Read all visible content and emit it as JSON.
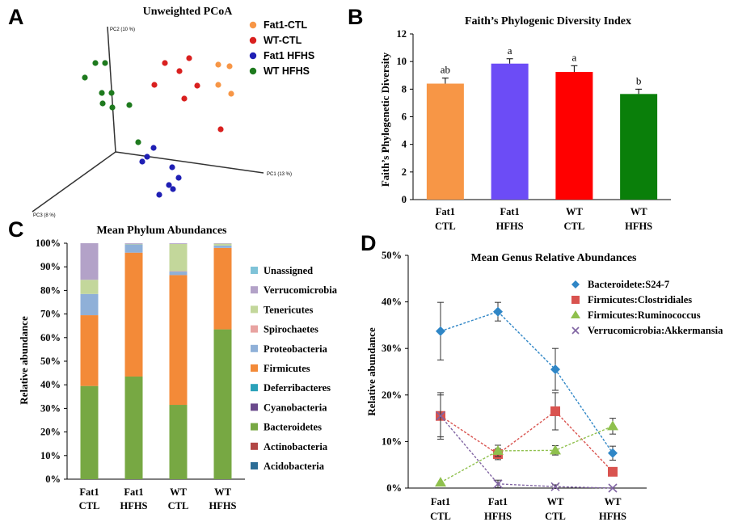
{
  "panels": {
    "A": "A",
    "B": "B",
    "C": "C",
    "D": "D"
  },
  "chart_data": [
    {
      "id": "A",
      "type": "scatter",
      "title": "Unweighted PCoA",
      "axis_labels": {
        "pc1": "PC1 (13 %)",
        "pc2": "PC2 (10 %)",
        "pc3": "PC3 (8 %)"
      },
      "legend_placement": "top-right",
      "series": [
        {
          "name": "Fat1-CTL",
          "color": "#f79646"
        },
        {
          "name": "WT-CTL",
          "color": "#d9201f"
        },
        {
          "name": "Fat1 HFHS",
          "color": "#1f1fb4"
        },
        {
          "name": "WT HFHS",
          "color": "#1e7a1e"
        }
      ]
    },
    {
      "id": "B",
      "type": "bar",
      "title": "Faith’s Phylogenic Diversity Index",
      "ylabel": "Faith’s Phylogenetic Diversity",
      "ylim": [
        0,
        12
      ],
      "yticks": [
        "0",
        "2",
        "4",
        "6",
        "8",
        "10",
        "12"
      ],
      "categories": [
        [
          "Fat1",
          "CTL"
        ],
        [
          "Fat1",
          "HFHS"
        ],
        [
          "WT",
          "CTL"
        ],
        [
          "WT",
          "HFHS"
        ]
      ],
      "values": [
        8.4,
        9.85,
        9.25,
        7.65
      ],
      "errors": [
        0.4,
        0.35,
        0.45,
        0.35
      ],
      "significance": [
        "ab",
        "a",
        "a",
        "b"
      ],
      "colors": [
        "#f79646",
        "#6c4cf6",
        "#ff0000",
        "#0a7f0a"
      ]
    },
    {
      "id": "C",
      "type": "bar",
      "stacked": true,
      "title": "Mean Phylum Abundances",
      "ylabel": "Relative abundance",
      "ylim": [
        0,
        100
      ],
      "yticks": [
        "0%",
        "10%",
        "20%",
        "30%",
        "40%",
        "50%",
        "60%",
        "70%",
        "80%",
        "90%",
        "100%"
      ],
      "categories": [
        [
          "Fat1",
          "CTL"
        ],
        [
          "Fat1",
          "HFHS"
        ],
        [
          "WT",
          "CTL"
        ],
        [
          "WT",
          "HFHS"
        ]
      ],
      "legend_placement": "right",
      "series": [
        {
          "name": "Acidobacteria",
          "color": "#2c6d96",
          "values": [
            0,
            0,
            0,
            0
          ]
        },
        {
          "name": "Actinobacteria",
          "color": "#b24745",
          "values": [
            0,
            0,
            0,
            0
          ]
        },
        {
          "name": "Bacteroidetes",
          "color": "#77a843",
          "values": [
            39.5,
            43.5,
            31.5,
            63.5
          ]
        },
        {
          "name": "Cyanobacteria",
          "color": "#6a4a8c",
          "values": [
            0,
            0,
            0,
            0
          ]
        },
        {
          "name": "Deferribacteres",
          "color": "#2aa1b9",
          "values": [
            0,
            0,
            0,
            0
          ]
        },
        {
          "name": "Firmicutes",
          "color": "#f38a38",
          "values": [
            30.0,
            52.5,
            55.0,
            34.5
          ]
        },
        {
          "name": "Proteobacteria",
          "color": "#8fb0d8",
          "values": [
            9.0,
            3.5,
            1.5,
            1.0
          ]
        },
        {
          "name": "Spirochaetes",
          "color": "#e8a3a1",
          "values": [
            0,
            0,
            0.2,
            0
          ]
        },
        {
          "name": "Tenericutes",
          "color": "#c3d79b",
          "values": [
            6.0,
            0.2,
            11.5,
            0.8
          ]
        },
        {
          "name": "Verrucomicrobia",
          "color": "#b3a2c8",
          "values": [
            15.5,
            0.3,
            0.3,
            0.2
          ]
        },
        {
          "name": "Unassigned",
          "color": "#7fc3d8",
          "values": [
            0,
            0,
            0,
            0
          ]
        }
      ]
    },
    {
      "id": "D",
      "type": "line",
      "title": "Mean Genus Relative Abundances",
      "ylabel": "Relative abundance",
      "ylim": [
        0,
        50
      ],
      "yticks": [
        "0%",
        "10%",
        "20%",
        "30%",
        "40%",
        "50%"
      ],
      "categories": [
        [
          "Fat1",
          "CTL"
        ],
        [
          "Fat1",
          "HFHS"
        ],
        [
          "WT",
          "CTL"
        ],
        [
          "WT",
          "HFHS"
        ]
      ],
      "legend_placement": "top-right",
      "series": [
        {
          "name": "Bacteroidete:S24-7",
          "color": "#2f86c6",
          "marker": "diamond",
          "values": [
            33.7,
            37.9,
            25.5,
            7.5
          ],
          "errors": [
            6.2,
            2.0,
            4.5,
            1.5
          ]
        },
        {
          "name": "Firmicutes:Clostridiales",
          "color": "#d9534f",
          "marker": "square",
          "values": [
            15.5,
            7.3,
            16.5,
            3.5
          ],
          "errors": [
            5.0,
            1.2,
            4.0,
            0
          ]
        },
        {
          "name": "Firmicutes:Ruminococcus",
          "color": "#8fc04d",
          "marker": "triangle",
          "values": [
            1.2,
            8.0,
            8.1,
            13.3
          ],
          "errors": [
            0,
            1.2,
            1.0,
            1.7
          ]
        },
        {
          "name": "Verrucomicrobia:Akkermansia",
          "color": "#8064a2",
          "marker": "x",
          "values": [
            15.5,
            0.9,
            0.3,
            0.0
          ],
          "errors": [
            4.5,
            0.8,
            0.4,
            0
          ]
        }
      ]
    }
  ]
}
